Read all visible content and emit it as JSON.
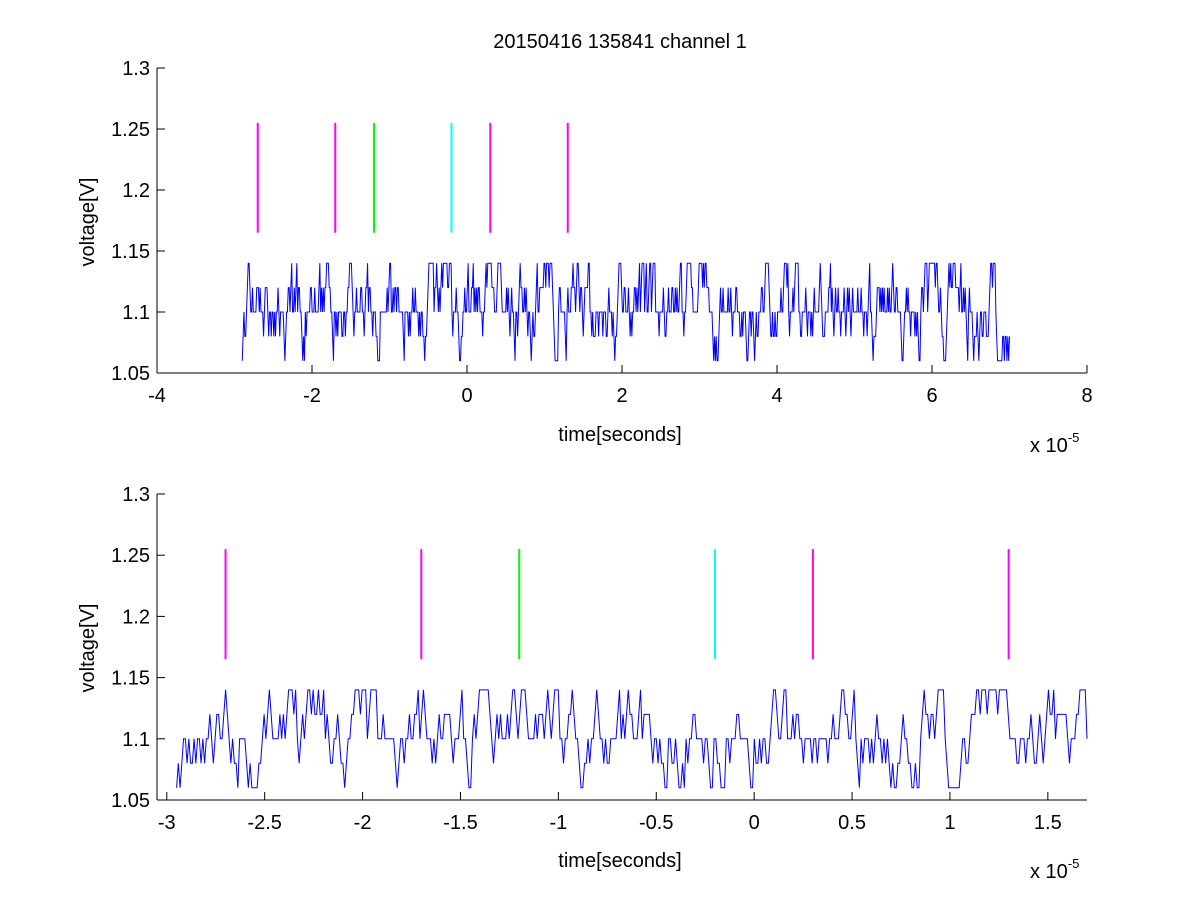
{
  "chart_data": [
    {
      "type": "line",
      "title": "20150416 135841 channel 1",
      "xlabel": "time[seconds]",
      "ylabel": "voltage[V]",
      "x_exponent_label": "x 10",
      "x_exponent": "-5",
      "xlim": [
        -4,
        8
      ],
      "ylim": [
        1.05,
        1.3
      ],
      "x_ticks": [
        "-4",
        "-2",
        "0",
        "2",
        "4",
        "6",
        "8"
      ],
      "y_ticks": [
        "1.05",
        "1.1",
        "1.15",
        "1.2",
        "1.25",
        "1.3"
      ],
      "grid": false,
      "signal": {
        "color": "#0000ff",
        "x_range": [
          -2.9,
          7.0
        ],
        "levels": [
          1.06,
          1.08,
          1.1,
          1.12,
          1.14
        ],
        "baseline": 1.1
      },
      "markers": [
        {
          "x": -2.7,
          "color": "#ff00ff",
          "y_range": [
            1.165,
            1.255
          ]
        },
        {
          "x": -1.7,
          "color": "#ff00ff",
          "y_range": [
            1.165,
            1.255
          ]
        },
        {
          "x": -1.2,
          "color": "#00ff00",
          "y_range": [
            1.165,
            1.255
          ]
        },
        {
          "x": -0.2,
          "color": "#00ffff",
          "y_range": [
            1.165,
            1.255
          ]
        },
        {
          "x": 0.3,
          "color": "#ff00ff",
          "y_range": [
            1.165,
            1.255
          ]
        },
        {
          "x": 1.3,
          "color": "#ff00ff",
          "y_range": [
            1.165,
            1.255
          ]
        }
      ]
    },
    {
      "type": "line",
      "title": "",
      "xlabel": "time[seconds]",
      "ylabel": "voltage[V]",
      "x_exponent_label": "x 10",
      "x_exponent": "-5",
      "xlim": [
        -3.05,
        1.7
      ],
      "ylim": [
        1.05,
        1.3
      ],
      "x_ticks": [
        "-3",
        "-2.5",
        "-2",
        "-1.5",
        "-1",
        "-0.5",
        "0",
        "0.5",
        "1",
        "1.5"
      ],
      "y_ticks": [
        "1.05",
        "1.1",
        "1.15",
        "1.2",
        "1.25",
        "1.3"
      ],
      "grid": false,
      "signal": {
        "color": "#0000ff",
        "x_range": [
          -2.95,
          1.7
        ],
        "levels": [
          1.06,
          1.08,
          1.1,
          1.12,
          1.14
        ],
        "baseline": 1.1
      },
      "markers": [
        {
          "x": -2.7,
          "color": "#ff00ff",
          "y_range": [
            1.165,
            1.255
          ]
        },
        {
          "x": -1.7,
          "color": "#ff00ff",
          "y_range": [
            1.165,
            1.255
          ]
        },
        {
          "x": -1.2,
          "color": "#00ff00",
          "y_range": [
            1.165,
            1.255
          ]
        },
        {
          "x": -0.2,
          "color": "#00ffff",
          "y_range": [
            1.165,
            1.255
          ]
        },
        {
          "x": 0.3,
          "color": "#ff00ff",
          "y_range": [
            1.165,
            1.255
          ]
        },
        {
          "x": 1.3,
          "color": "#ff00ff",
          "y_range": [
            1.165,
            1.255
          ]
        }
      ]
    }
  ]
}
